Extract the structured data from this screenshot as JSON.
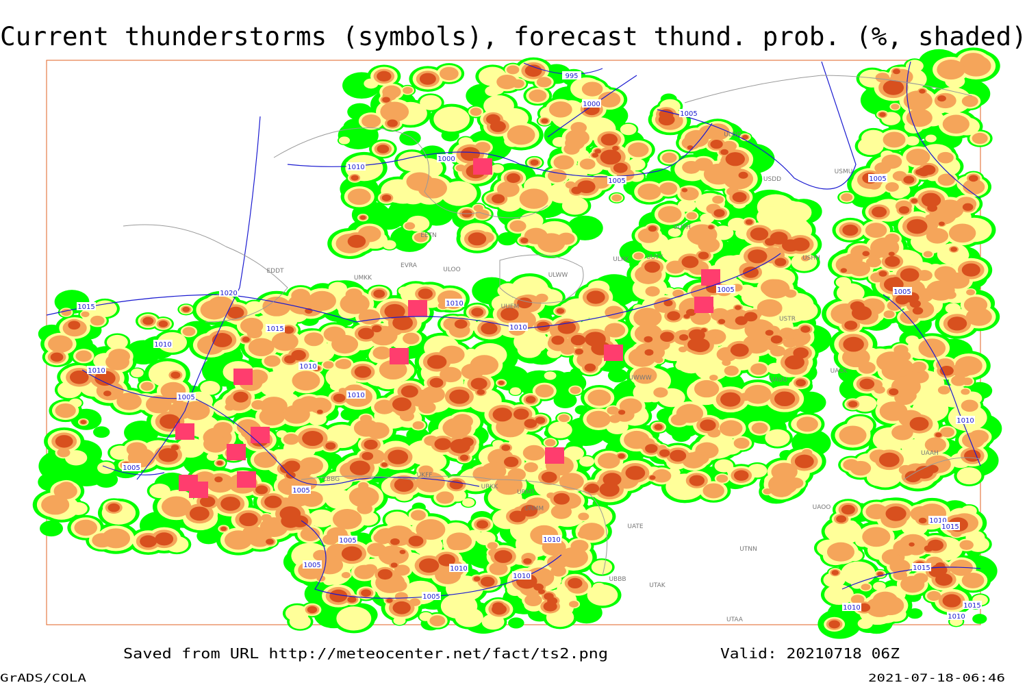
{
  "title": "Current thunderstorms (symbols), forecast thund. prob. (%, shaded)",
  "footer": {
    "source": "Saved from URL http://meteocenter.net/fact/ts2.png",
    "valid": "Valid: 20210718 06Z",
    "credit": "GrADS/COLA",
    "timestamp": "2021-07-18-06:46"
  },
  "isobar_labels": [
    "995",
    "1000",
    "1005",
    "1000",
    "1010",
    "1005",
    "1005",
    "1020",
    "1015",
    "1015",
    "1010",
    "1010",
    "1010",
    "1005",
    "1010",
    "1005",
    "1005",
    "1005",
    "1005",
    "1010",
    "1010",
    "1010",
    "1005",
    "1005",
    "1010",
    "1010",
    "1010",
    "1005",
    "1010",
    "1015",
    "1015",
    "1010",
    "1015",
    "1010"
  ],
  "stations": [
    "EETN",
    "EVRA",
    "ULOO",
    "ULWW",
    "UUEM",
    "ULKK",
    "UUYY",
    "UUYH",
    "USHH",
    "USTR",
    "UACK",
    "UAUU",
    "UAOO",
    "UTNN",
    "UATE",
    "UTAK",
    "UBBB",
    "URMT",
    "URMM",
    "URKK",
    "UKFF",
    "LBBG",
    "UMKK",
    "EDDT",
    "USMU",
    "ULDD",
    "USDD",
    "UWWW",
    "UTAA",
    "UAAH"
  ]
}
